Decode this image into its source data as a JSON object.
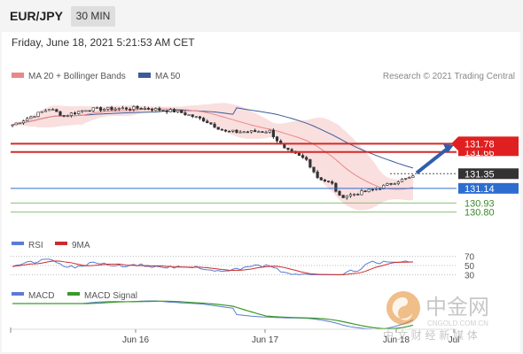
{
  "header": {
    "pair": "EUR/JPY",
    "timeframe": "30 MIN"
  },
  "datetime": "Friday, June 18, 2021 5:21:53 AM CET",
  "watermark": {
    "cn_logo": "中金网",
    "url": "CNGOLD.COM.CN",
    "tagline": "中 文 财 经 新 媒 体"
  },
  "colors": {
    "ma20": "#e88888",
    "ma50": "#3b5b9a",
    "bollinger": "#f6c9c9",
    "resistance": "#d42a2a",
    "support": "#2d6dcf",
    "rsi": "#5b7bd5",
    "rsi_ma": "#cc2b2b",
    "macd": "#5b7bd5",
    "macd_signal": "#3a9a2a",
    "arrow": "#2f5fad",
    "bull": "#ffffff",
    "bear": "#333333"
  },
  "chart_data": [
    {
      "type": "candlestick",
      "title": "",
      "legend": [
        {
          "name": "MA 20 + Bollinger Bands"
        },
        {
          "name": "MA 50"
        }
      ],
      "source": "Research © 2021 Trading Central",
      "ylim": [
        130.72,
        132.62
      ],
      "candles_ohlc": [],
      "ma20_close": [],
      "ma50_close": [],
      "levels": {
        "resistance": [
          131.78,
          131.66
        ],
        "pivot": 131.35,
        "support": [
          131.14,
          130.93,
          130.8
        ]
      },
      "level_labels": [
        "131.78",
        "131.66",
        "131.35",
        "131.14",
        "130.93",
        "130.80"
      ],
      "forecast_arrow": {
        "from_price": 131.36,
        "to_price": 131.76
      }
    },
    {
      "type": "line",
      "legend": [
        {
          "name": "RSI"
        },
        {
          "name": "9MA"
        }
      ],
      "levels": [
        70,
        50,
        30
      ],
      "level_labels": [
        "70",
        "50",
        "30"
      ],
      "rsi": [],
      "rsi_ma": []
    },
    {
      "type": "line",
      "legend": [
        {
          "name": "MACD"
        },
        {
          "name": "MACD Signal"
        }
      ],
      "macd": [],
      "signal": []
    }
  ],
  "x_axis": {
    "ticks": [
      "Jun 16",
      "Jun 17",
      "Jun 18",
      "Jul"
    ]
  }
}
